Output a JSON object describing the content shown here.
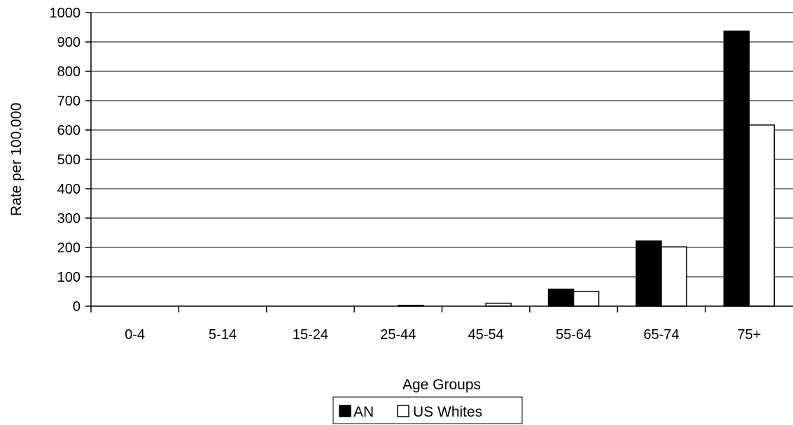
{
  "chart_data": {
    "type": "bar",
    "title": "",
    "xlabel": "Age Groups",
    "ylabel": "Rate per 100,000",
    "categories": [
      "0-4",
      "5-14",
      "15-24",
      "25-44",
      "45-54",
      "55-64",
      "65-74",
      "75+"
    ],
    "series": [
      {
        "name": "AN",
        "values": [
          0,
          0,
          0,
          0,
          0,
          58,
          222,
          937
        ],
        "color": "#000000"
      },
      {
        "name": "US Whites",
        "values": [
          0,
          0,
          0,
          3,
          10,
          50,
          202,
          617
        ],
        "color": "#ffffff"
      }
    ],
    "ylim": [
      0,
      1000
    ],
    "yticks": [
      0,
      100,
      200,
      300,
      400,
      500,
      600,
      700,
      800,
      900,
      1000
    ],
    "grid": true,
    "legend_position": "bottom"
  }
}
